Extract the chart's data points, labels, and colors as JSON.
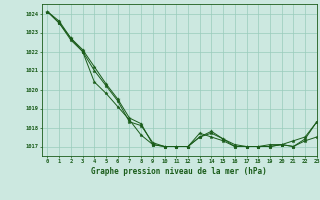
{
  "title": "Graphe pression niveau de la mer (hPa)",
  "bg_color": "#cce8e0",
  "grid_color": "#99ccbb",
  "line_color": "#1a5c1a",
  "marker_color": "#1a5c1a",
  "xlim": [
    -0.5,
    23
  ],
  "ylim": [
    1016.5,
    1024.5
  ],
  "yticks": [
    1017,
    1018,
    1019,
    1020,
    1021,
    1022,
    1023,
    1024
  ],
  "xticks": [
    0,
    1,
    2,
    3,
    4,
    5,
    6,
    7,
    8,
    9,
    10,
    11,
    12,
    13,
    14,
    15,
    16,
    17,
    18,
    19,
    20,
    21,
    22,
    23
  ],
  "series1": [
    1024.1,
    1023.6,
    1022.7,
    1022.1,
    1021.2,
    1020.3,
    1019.5,
    1018.5,
    1018.2,
    1017.1,
    1017.0,
    1017.0,
    1017.0,
    1017.5,
    1017.7,
    1017.4,
    1017.0,
    1017.0,
    1017.0,
    1017.0,
    1017.1,
    1017.0,
    1017.3,
    1017.5
  ],
  "series2": [
    1024.1,
    1023.5,
    1022.7,
    1022.0,
    1020.4,
    1019.8,
    1019.1,
    1018.4,
    1017.6,
    1017.1,
    1017.0,
    1017.0,
    1017.0,
    1017.5,
    1017.8,
    1017.4,
    1017.1,
    1017.0,
    1017.0,
    1017.0,
    1017.1,
    1017.0,
    1017.4,
    1018.3
  ],
  "series3": [
    1024.1,
    1023.5,
    1022.6,
    1022.0,
    1021.0,
    1020.2,
    1019.4,
    1018.3,
    1018.1,
    1017.2,
    1017.0,
    1017.0,
    1017.0,
    1017.7,
    1017.5,
    1017.3,
    1017.0,
    1017.0,
    1017.0,
    1017.1,
    1017.1,
    1017.3,
    1017.5,
    1018.3
  ]
}
